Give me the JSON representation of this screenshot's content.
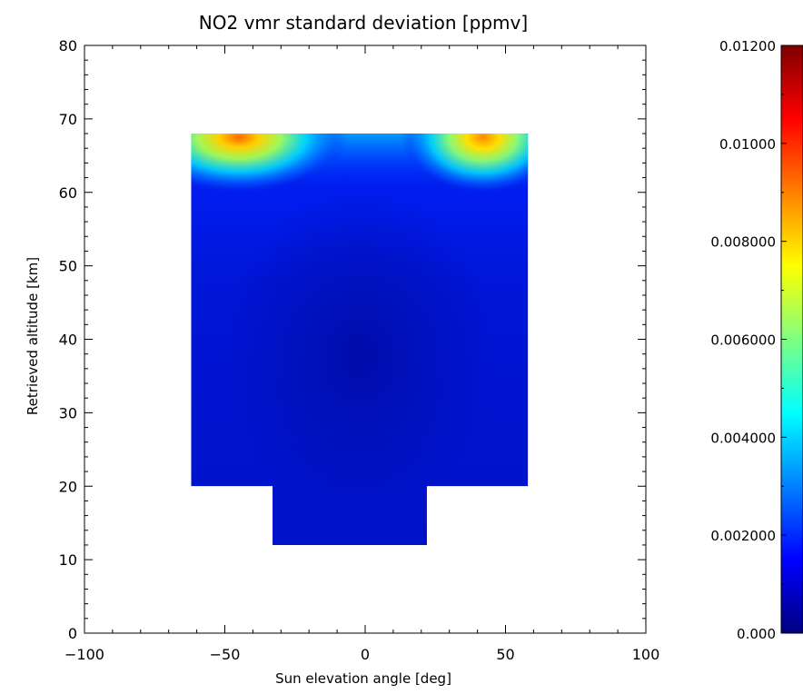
{
  "chart_data": {
    "type": "heatmap",
    "title": "NO2 vmr standard deviation [ppmv]",
    "xlabel": "Sun elevation angle [deg]",
    "ylabel": "Retrieved altitude [km]",
    "xlim": [
      -100,
      100
    ],
    "ylim": [
      0,
      80
    ],
    "xticks": [
      -100,
      -50,
      0,
      50,
      100
    ],
    "xtick_labels": [
      "−100",
      "−50",
      "0",
      "50",
      "100"
    ],
    "yticks": [
      0,
      10,
      20,
      30,
      40,
      50,
      60,
      70,
      80
    ],
    "ytick_labels": [
      "0",
      "10",
      "20",
      "30",
      "40",
      "50",
      "60",
      "70",
      "80"
    ],
    "colormap": "jet",
    "colorbar": {
      "range": [
        0,
        0.012
      ],
      "ticks": [
        0,
        0.002,
        0.004,
        0.006,
        0.008,
        0.01,
        0.012
      ],
      "tick_labels": [
        "0.000",
        "0.002000",
        "0.004000",
        "0.006000",
        "0.008000",
        "0.01000",
        "0.01200"
      ],
      "colors": [
        "#00007f",
        "#0000ff",
        "#0080ff",
        "#00ffff",
        "#80ff80",
        "#ffff00",
        "#ff8000",
        "#ff0000",
        "#7f0000"
      ]
    },
    "data_region": [
      {
        "x": [
          -62,
          58
        ],
        "y": [
          20,
          68
        ]
      },
      {
        "x": [
          -33,
          22
        ],
        "y": [
          12,
          20
        ]
      }
    ],
    "hotspots": [
      {
        "x": -45,
        "y": 67.5,
        "value": 0.009
      },
      {
        "x": 42,
        "y": 67.5,
        "value": 0.009
      }
    ],
    "background_value": 0.0003
  }
}
